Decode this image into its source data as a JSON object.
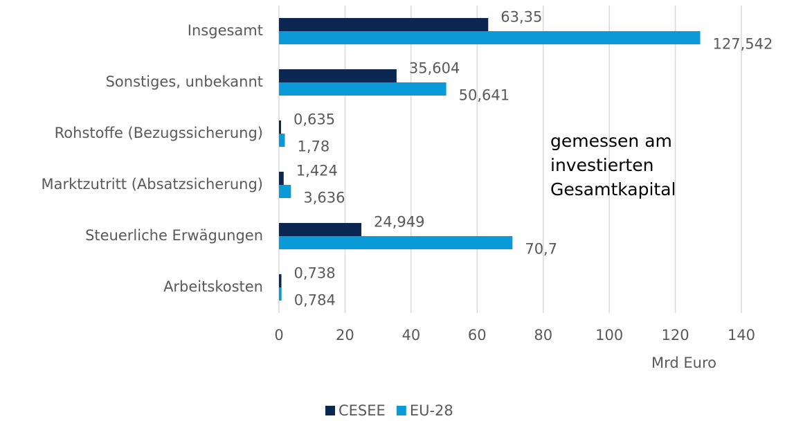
{
  "chart_data": {
    "type": "bar",
    "orientation": "horizontal",
    "categories": [
      "Insgesamt",
      "Sonstiges, unbekannt",
      "Rohstoffe (Bezugssicherung)",
      "Marktzutritt (Absatzsicherung)",
      "Steuerliche Erwägungen",
      "Arbeitskosten"
    ],
    "series": [
      {
        "name": "CESEE",
        "color": "#0b2752",
        "values": [
          63.35,
          35.604,
          0.635,
          1.424,
          24.949,
          0.738
        ],
        "value_labels": [
          "63,35",
          "35,604",
          "0,635",
          "1,424",
          "24,949",
          "0,738"
        ]
      },
      {
        "name": "EU-28",
        "color": "#0a9ad8",
        "values": [
          127.542,
          50.641,
          1.78,
          3.636,
          70.7,
          0.784
        ],
        "value_labels": [
          "127,542",
          "50,641",
          "1,78",
          "3,636",
          "70,7",
          "0,784"
        ]
      }
    ],
    "xlim": [
      0,
      140
    ],
    "xticks": [
      0,
      20,
      40,
      60,
      80,
      100,
      120,
      140
    ],
    "grid": true,
    "x_axis_label": "Mrd Euro",
    "annotation": [
      "gemessen am",
      "investierten",
      "Gesamtkapital"
    ],
    "legend": "bottom"
  }
}
